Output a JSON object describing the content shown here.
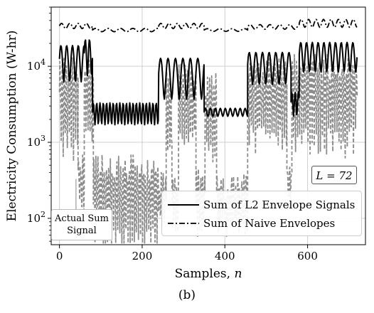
{
  "chart_data": {
    "type": "line",
    "xlabel": "Samples, n",
    "ylabel": "Electricity Consumption (W-hr)",
    "caption": "(b)",
    "yscale": "log",
    "xlim": [
      -20,
      740
    ],
    "ylim": [
      45,
      60000
    ],
    "x_ticks": [
      0,
      200,
      400,
      600
    ],
    "y_ticks": [
      {
        "value": 100,
        "base": "10",
        "exp": "2"
      },
      {
        "value": 1000,
        "base": "10",
        "exp": "3"
      },
      {
        "value": 10000,
        "base": "10",
        "exp": "4"
      }
    ],
    "grid": true,
    "legend_placement": "lower-right",
    "annotation_L": "L = 72",
    "annotation_actual": [
      "Actual Sum",
      "Signal"
    ],
    "series": [
      {
        "name": "Sum of L2 Envelope Signals",
        "style": "solid",
        "color": "#000000",
        "segments": [
          {
            "x": [
              0,
              60
            ],
            "mean": 12500,
            "amp": 0.5,
            "period": 14
          },
          {
            "x": [
              60,
              80
            ],
            "mean": 15000,
            "amp": 0.5,
            "period": 10
          },
          {
            "x": [
              80,
              240
            ],
            "mean": 2500,
            "amp": 0.32,
            "period": 8
          },
          {
            "x": [
              240,
              350
            ],
            "mean": 8200,
            "amp": 0.55,
            "period": 18
          },
          {
            "x": [
              350,
              455
            ],
            "mean": 2500,
            "amp": 0.12,
            "period": 12
          },
          {
            "x": [
              455,
              560
            ],
            "mean": 10500,
            "amp": 0.45,
            "period": 16
          },
          {
            "x": [
              560,
              580
            ],
            "mean": 3400,
            "amp": 0.35,
            "period": 8
          },
          {
            "x": [
              580,
              720
            ],
            "mean": 14500,
            "amp": 0.42,
            "period": 14
          }
        ]
      },
      {
        "name": "Sum of Naive Envelopes",
        "style": "dashdot",
        "color": "#000000",
        "segments": [
          {
            "x": [
              0,
              80
            ],
            "mean": 34000,
            "amp": 0.08,
            "period": 20
          },
          {
            "x": [
              80,
              240
            ],
            "mean": 30000,
            "amp": 0.05,
            "period": 30
          },
          {
            "x": [
              240,
              350
            ],
            "mean": 34000,
            "amp": 0.08,
            "period": 20
          },
          {
            "x": [
              350,
              455
            ],
            "mean": 30000,
            "amp": 0.04,
            "period": 30
          },
          {
            "x": [
              455,
              580
            ],
            "mean": 33000,
            "amp": 0.07,
            "period": 24
          },
          {
            "x": [
              580,
              720
            ],
            "mean": 37000,
            "amp": 0.12,
            "period": 18
          }
        ]
      },
      {
        "name": "Actual Sum Signal",
        "style": "dashed",
        "color": "#8c8c8c",
        "segments": [
          {
            "x": [
              0,
              45
            ],
            "mean": 5200,
            "amp": 0.85,
            "period": 5
          },
          {
            "x": [
              45,
              60
            ],
            "mean": 340,
            "amp": 0.5,
            "period": 5
          },
          {
            "x": [
              60,
              82
            ],
            "mean": 6000,
            "amp": 0.85,
            "period": 5
          },
          {
            "x": [
              82,
              240
            ],
            "mean": 270,
            "amp": 0.85,
            "period": 5
          },
          {
            "x": [
              240,
              258
            ],
            "mean": 200,
            "amp": 0.6,
            "period": 5
          },
          {
            "x": [
              258,
              272
            ],
            "mean": 3500,
            "amp": 0.8,
            "period": 5
          },
          {
            "x": [
              272,
              288
            ],
            "mean": 220,
            "amp": 0.6,
            "period": 5
          },
          {
            "x": [
              288,
              330
            ],
            "mean": 4200,
            "amp": 0.8,
            "period": 5
          },
          {
            "x": [
              330,
              352
            ],
            "mean": 200,
            "amp": 0.6,
            "period": 5
          },
          {
            "x": [
              352,
              380
            ],
            "mean": 3300,
            "amp": 0.8,
            "period": 5
          },
          {
            "x": [
              380,
              455
            ],
            "mean": 180,
            "amp": 0.6,
            "period": 5
          },
          {
            "x": [
              455,
              550
            ],
            "mean": 5200,
            "amp": 0.8,
            "period": 5
          },
          {
            "x": [
              550,
              562
            ],
            "mean": 320,
            "amp": 0.5,
            "period": 5
          },
          {
            "x": [
              562,
              720
            ],
            "mean": 5800,
            "amp": 0.85,
            "period": 5
          }
        ]
      }
    ]
  }
}
